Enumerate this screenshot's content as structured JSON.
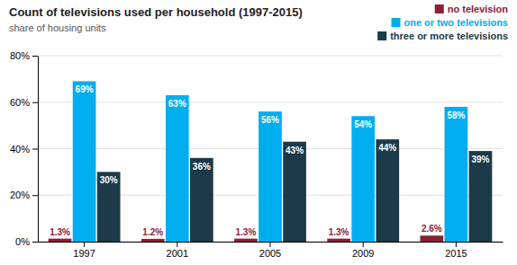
{
  "chart_data": {
    "type": "bar",
    "title": "Count of televisions used per household (1997-2015)",
    "subtitle": "share of housing units",
    "categories": [
      "1997",
      "2001",
      "2005",
      "2009",
      "2015"
    ],
    "series": [
      {
        "name": "no television",
        "color": "#8B2035",
        "values": [
          1.3,
          1.2,
          1.3,
          1.3,
          2.6
        ],
        "value_labels": [
          "1.3%",
          "1.2%",
          "1.3%",
          "1.3%",
          "2.6%"
        ]
      },
      {
        "name": "one or two televisions",
        "color": "#00AEEF",
        "values": [
          69,
          63,
          56,
          54,
          58
        ],
        "value_labels": [
          "69%",
          "63%",
          "56%",
          "54%",
          "58%"
        ]
      },
      {
        "name": "three or more televisions",
        "color": "#1C3A4A",
        "values": [
          30,
          36,
          43,
          44,
          39
        ],
        "value_labels": [
          "30%",
          "36%",
          "43%",
          "44%",
          "39%"
        ]
      }
    ],
    "ylim": [
      0,
      80
    ],
    "yticks": [
      {
        "value": 0,
        "label": "0%"
      },
      {
        "value": 20,
        "label": "20%"
      },
      {
        "value": 40,
        "label": "40%"
      },
      {
        "value": 60,
        "label": "60%"
      },
      {
        "value": 80,
        "label": "80%"
      }
    ],
    "grid": true,
    "legend": "upper right",
    "data_labels": true
  }
}
